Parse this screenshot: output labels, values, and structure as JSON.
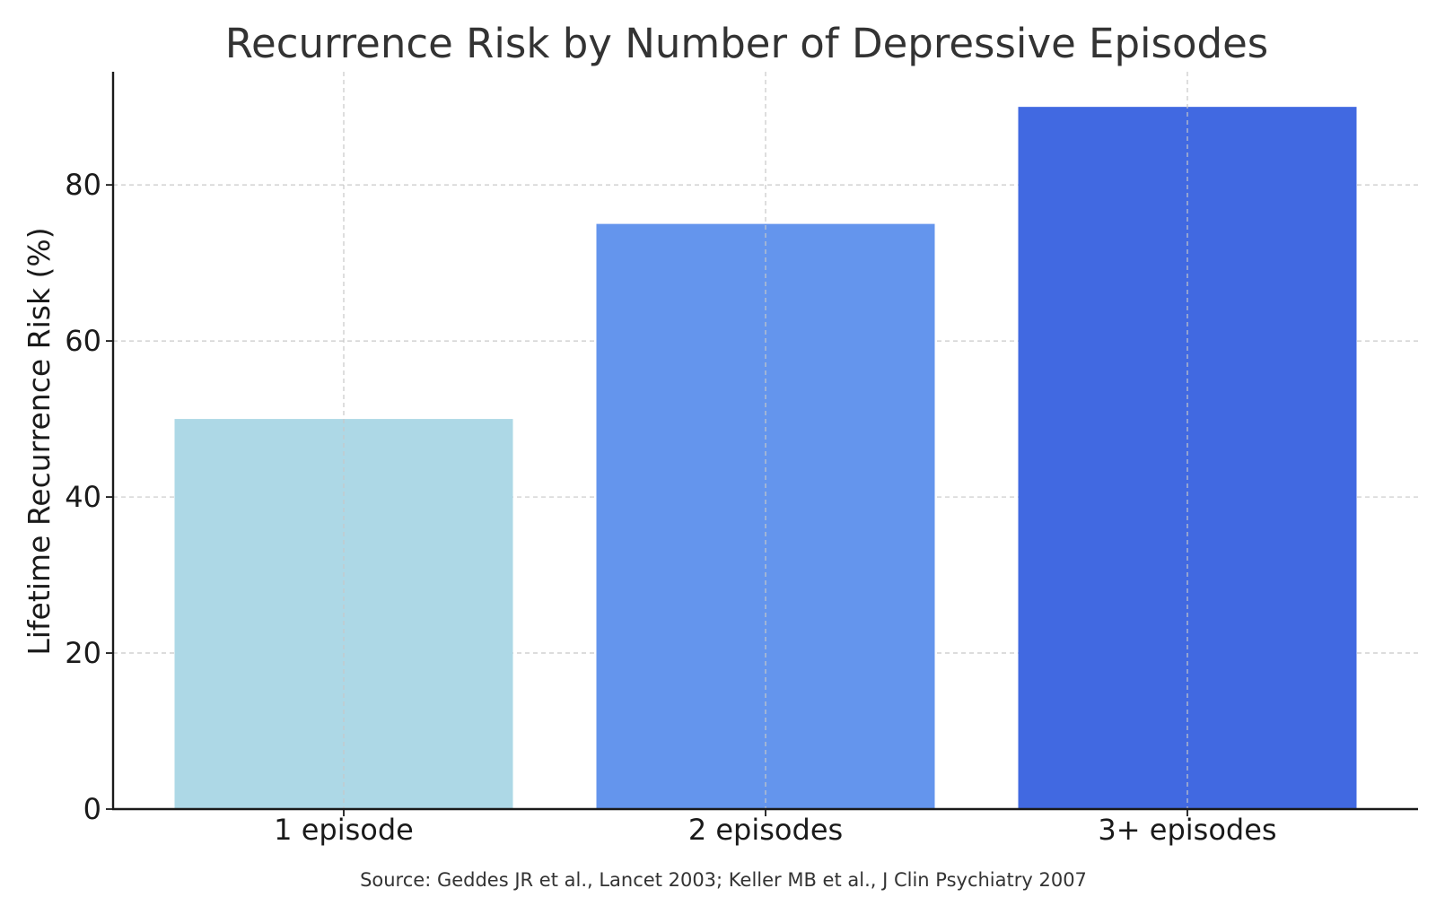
{
  "chart_data": {
    "type": "bar",
    "title": "Recurrence Risk by Number of Depressive Episodes",
    "xlabel": "",
    "ylabel": "Lifetime Recurrence Risk (%)",
    "categories": [
      "1 episode",
      "2 episodes",
      "3+ episodes"
    ],
    "values": [
      50,
      75,
      90
    ],
    "colors": [
      "#add8e6",
      "#6495ed",
      "#4169e1"
    ],
    "ylim": [
      0,
      94.5
    ],
    "yticks": [
      0,
      20,
      40,
      60,
      80
    ],
    "grid": true,
    "source": "Source: Geddes JR et al., Lancet 2003; Keller MB et al., J Clin Psychiatry 2007"
  },
  "colors": {
    "grid": "#c8c8c8",
    "axis": "#1a1a1a",
    "text": "#333333"
  }
}
